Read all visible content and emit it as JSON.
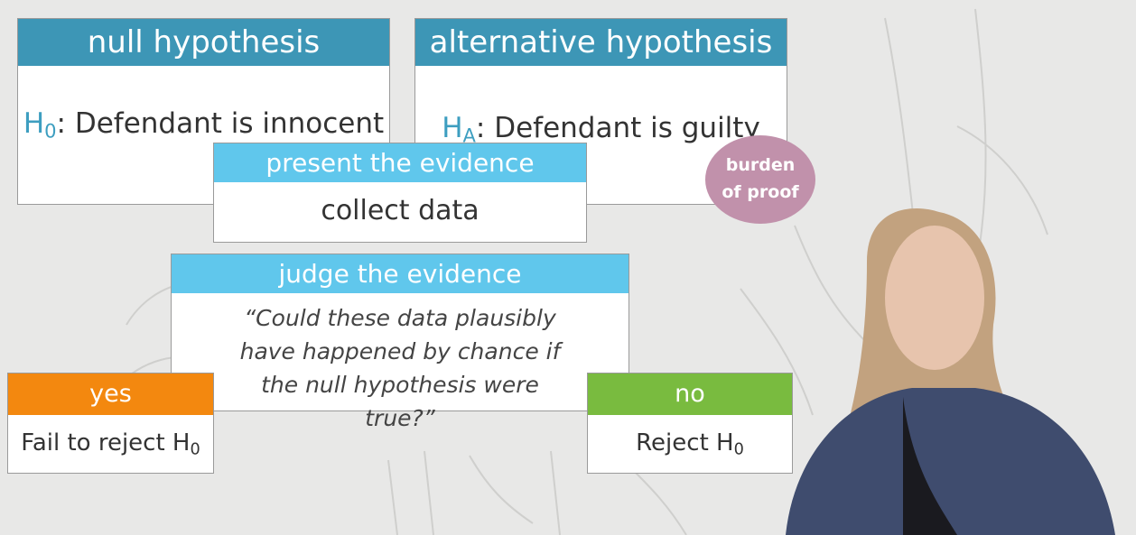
{
  "null_card": {
    "header": "null hypothesis",
    "symbol": "H",
    "subscript": "0",
    "statement": ": Defendant is innocent"
  },
  "alt_card": {
    "header": "alternative hypothesis",
    "symbol": "H",
    "subscript": "A",
    "statement": ": Defendant is guilty"
  },
  "burden_badge": {
    "line1": "burden",
    "line2": "of proof"
  },
  "present_card": {
    "header": "present the evidence",
    "body": "collect data"
  },
  "judge_card": {
    "header": "judge the evidence",
    "question": "“Could these data plausibly have happened by chance if the null hypothesis were true?”"
  },
  "yes_card": {
    "header": "yes",
    "text": "Fail to reject H",
    "subscript": "0"
  },
  "no_card": {
    "header": "no",
    "text": "Reject H",
    "subscript": "0"
  },
  "colors": {
    "header_dark_blue": "#3d96b6",
    "header_light_blue": "#60c7ec",
    "yes_orange": "#f3880f",
    "no_green": "#79bb3f",
    "burden_pink": "#c191ab",
    "hypothesis_symbol": "#3d9ec0"
  }
}
